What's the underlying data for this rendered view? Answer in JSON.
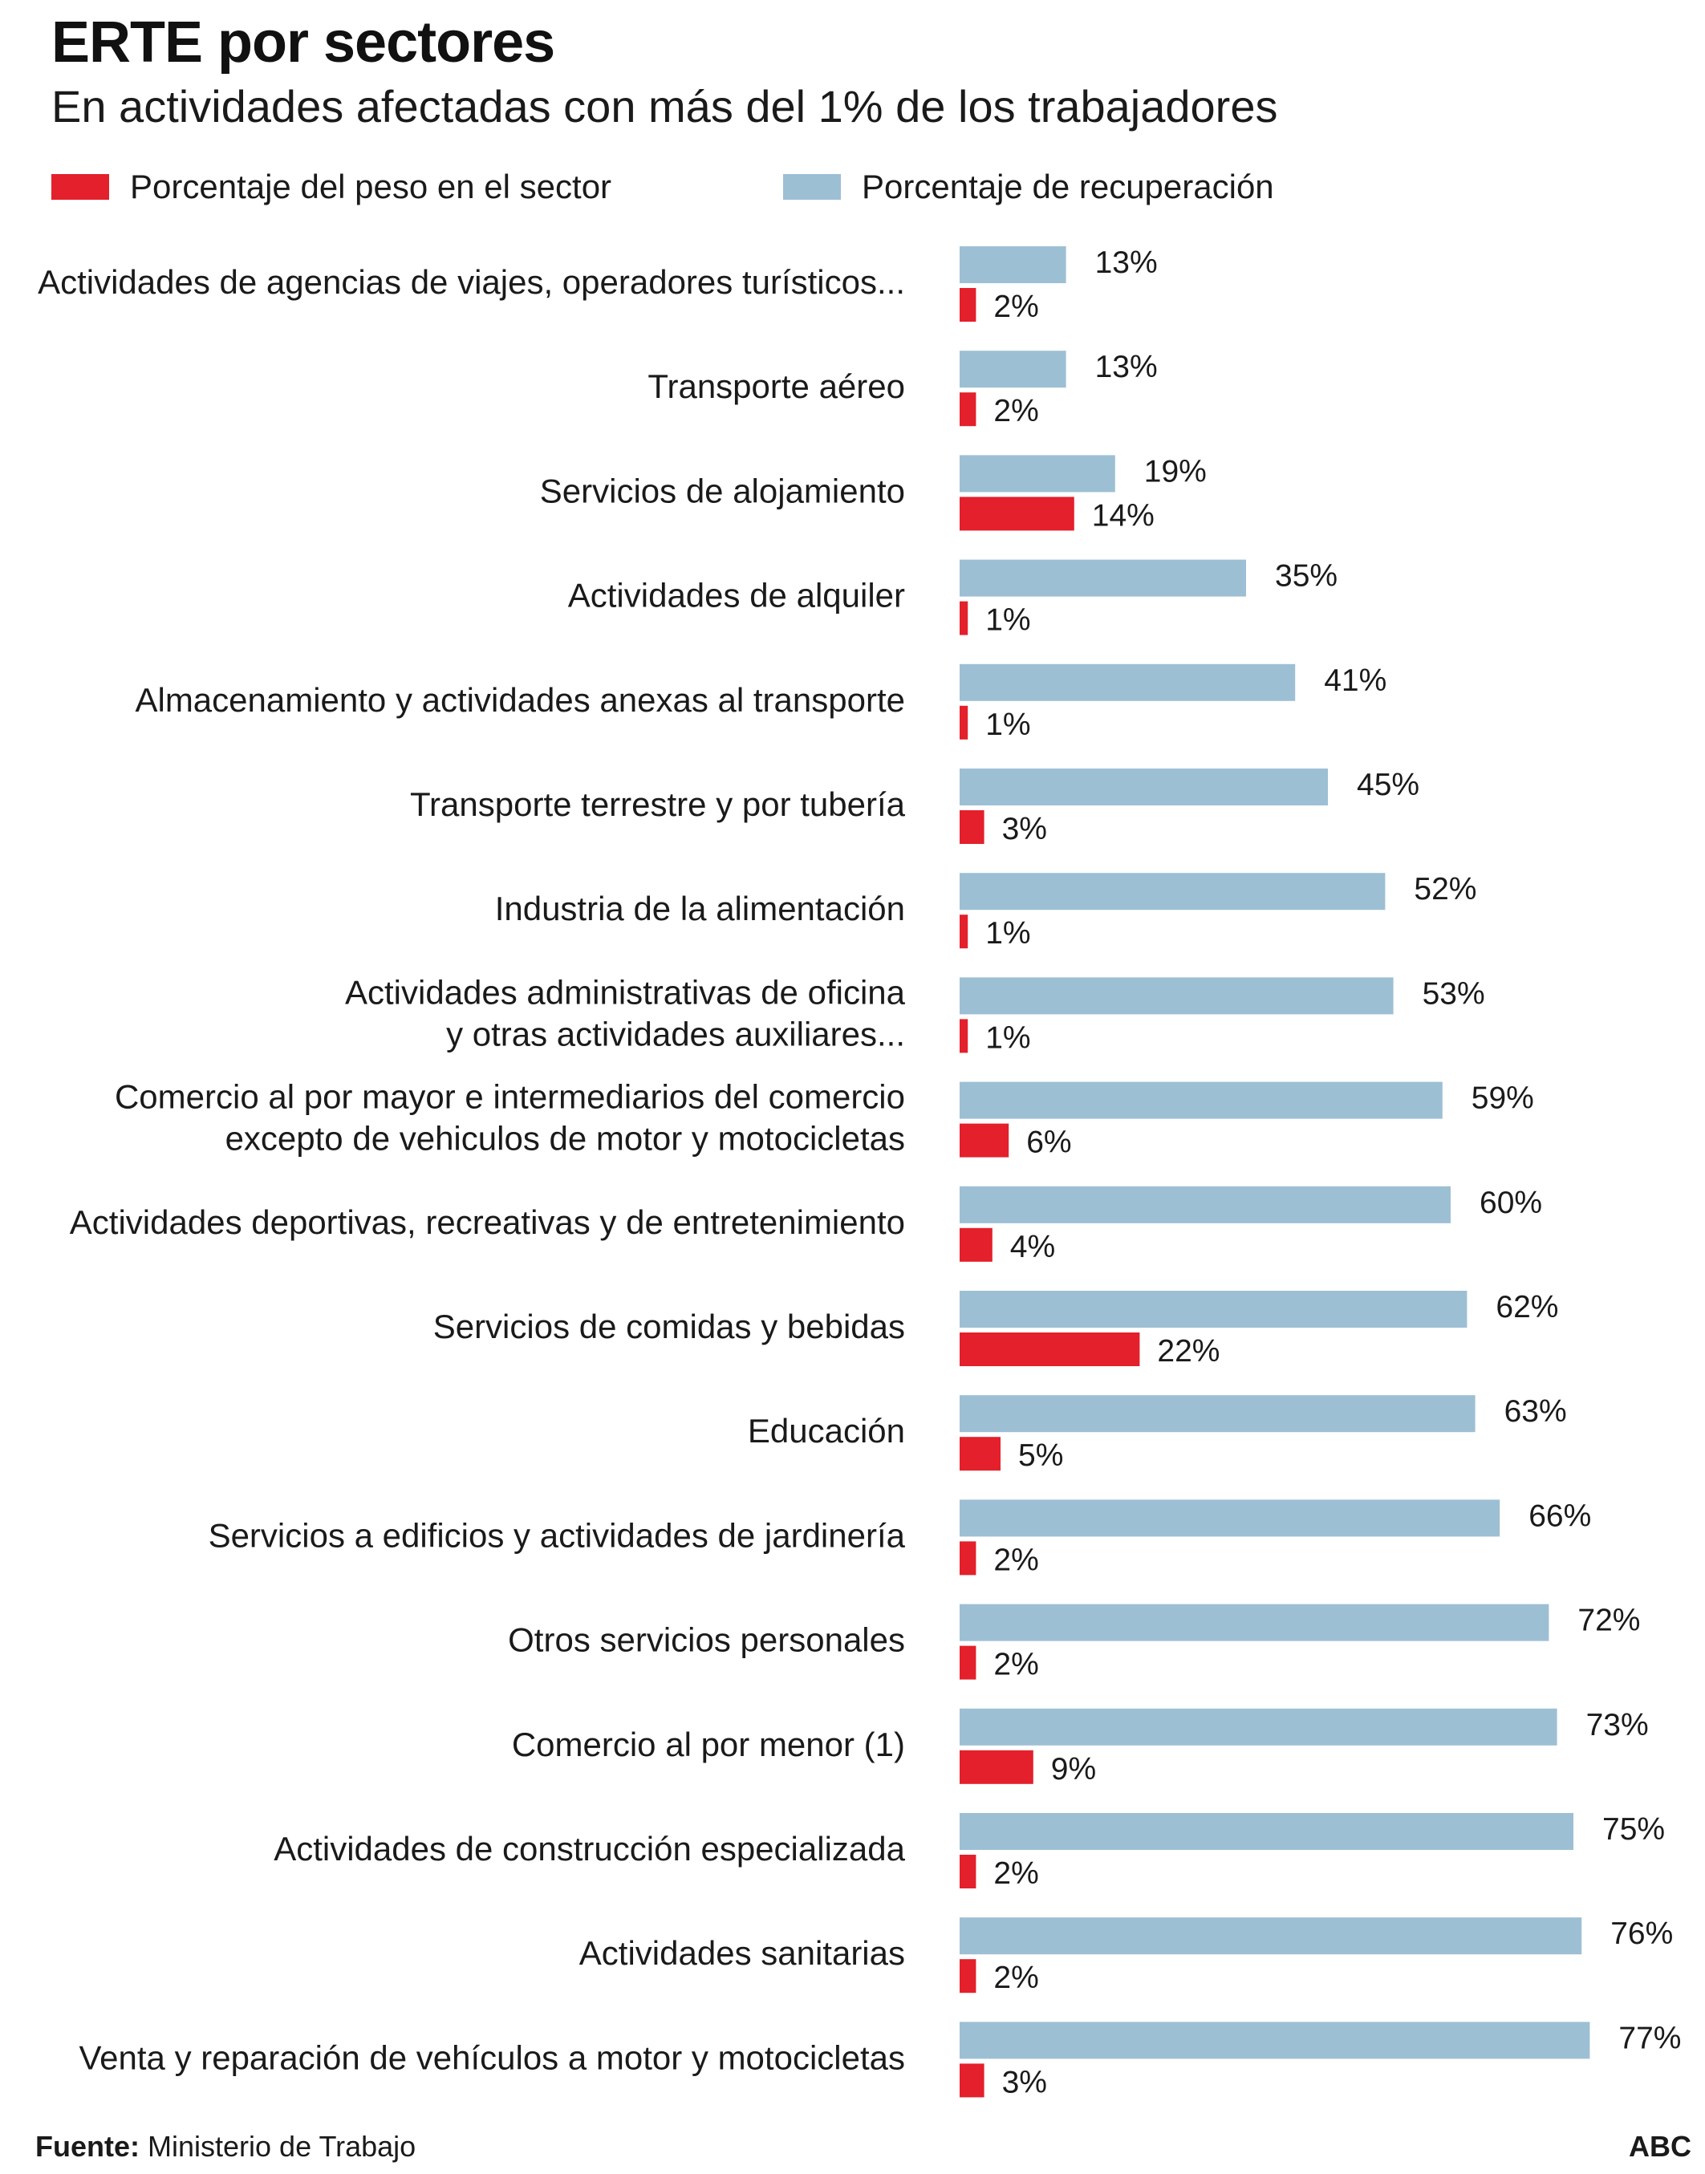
{
  "chart_data": {
    "type": "bar",
    "orientation": "horizontal",
    "title": "ERTE por sectores",
    "subtitle": "En actividades afectadas con más del 1% de los trabajadores",
    "source_label": "Fuente:",
    "source": "Ministerio de Trabajo",
    "brand": "ABC",
    "legend": {
      "placement": "top-left"
    },
    "grid": false,
    "xlim": [
      0,
      100
    ],
    "value_suffix": "%",
    "series": [
      {
        "name": "Porcentaje de recuperación",
        "color": "#9dbfd4",
        "values": [
          13,
          13,
          19,
          35,
          41,
          45,
          52,
          53,
          59,
          60,
          62,
          63,
          66,
          72,
          73,
          75,
          76,
          77
        ]
      },
      {
        "name": "Porcentaje del peso en el sector",
        "color": "#e3202b",
        "values": [
          2,
          2,
          14,
          1,
          1,
          3,
          1,
          1,
          6,
          4,
          22,
          5,
          2,
          2,
          9,
          2,
          2,
          3
        ]
      }
    ],
    "categories": [
      [
        "Actividades de agencias de viajes, operadores turísticos..."
      ],
      [
        "Transporte aéreo"
      ],
      [
        "Servicios de alojamiento"
      ],
      [
        "Actividades de alquiler"
      ],
      [
        "Almacenamiento y actividades anexas al transporte"
      ],
      [
        "Transporte terrestre y por tubería"
      ],
      [
        "Industria de la alimentación"
      ],
      [
        "Actividades administrativas de oficina",
        "y otras actividades auxiliares..."
      ],
      [
        "Comercio al por mayor e intermediarios del comercio",
        "excepto de vehiculos de motor y motocicletas"
      ],
      [
        "Actividades deportivas, recreativas y de entretenimiento"
      ],
      [
        "Servicios de comidas y bebidas"
      ],
      [
        "Educación"
      ],
      [
        "Servicios a edificios y actividades de jardinería"
      ],
      [
        "Otros servicios personales"
      ],
      [
        "Comercio al por menor (1)"
      ],
      [
        "Actividades de construcción especializada"
      ],
      [
        "Actividades sanitarias"
      ],
      [
        "Venta y reparación de vehículos a motor y motocicletas"
      ]
    ]
  }
}
